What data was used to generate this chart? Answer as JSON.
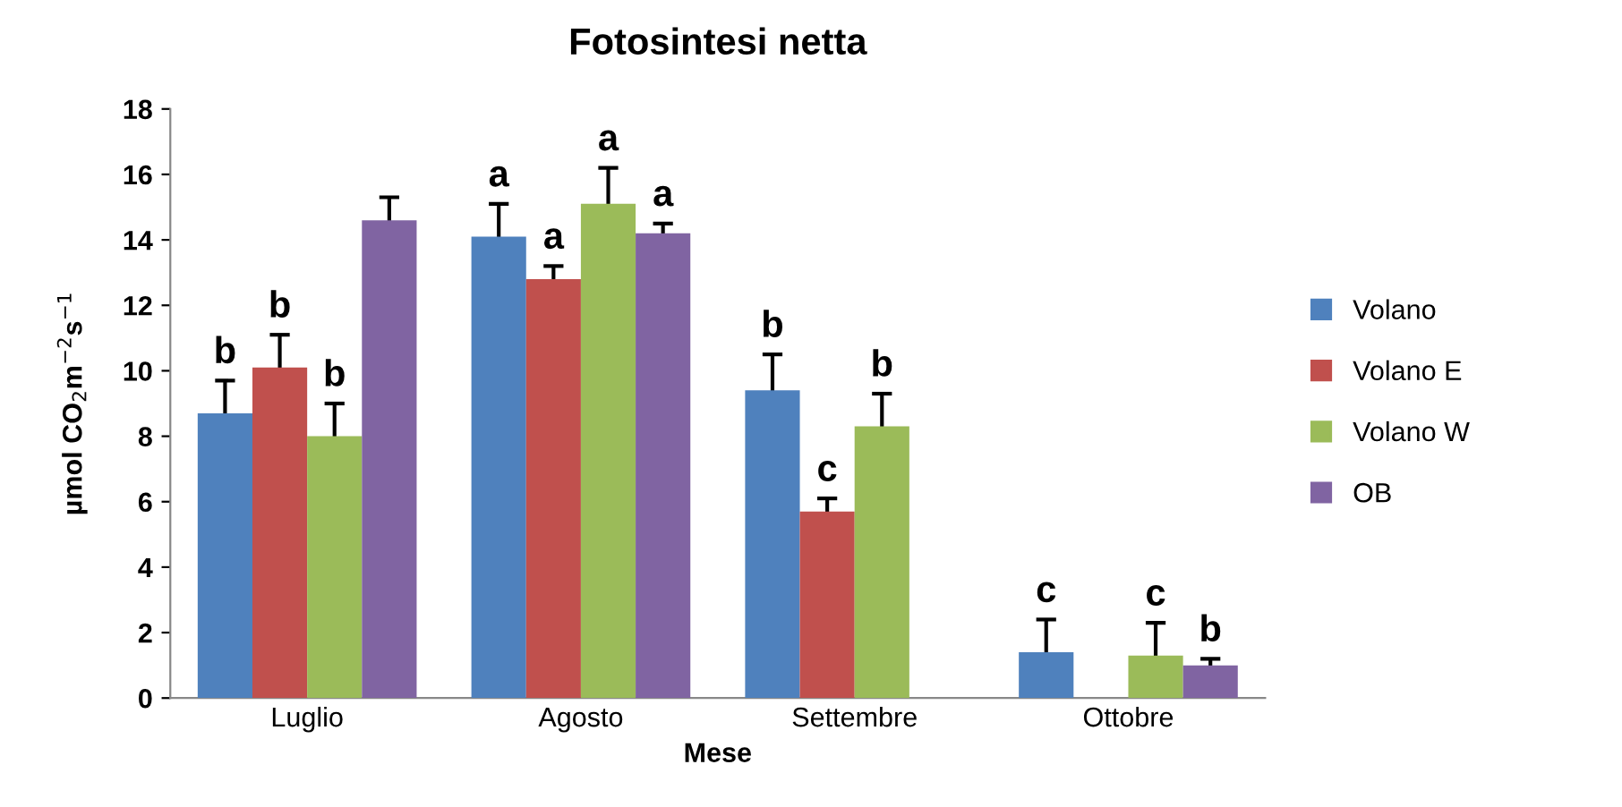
{
  "chart_data": {
    "type": "bar",
    "title": "Fotosintesi netta",
    "xlabel": "Mese",
    "ylabel": "µmol CO$_{2}$m$^{−2}$s$^{−1}$",
    "categories": [
      "Luglio",
      "Agosto",
      "Settembre",
      "Ottobre"
    ],
    "series": [
      {
        "name": "Volano",
        "color": "#4f81bd",
        "values": [
          8.7,
          14.1,
          9.4,
          1.4
        ],
        "errors": [
          1.0,
          1.0,
          1.1,
          1.0
        ],
        "value_labels": [
          "b",
          "a",
          "b",
          "c"
        ]
      },
      {
        "name": "Volano E",
        "color": "#c0504d",
        "values": [
          10.1,
          12.8,
          5.7,
          null
        ],
        "errors": [
          1.0,
          0.4,
          0.4,
          null
        ],
        "value_labels": [
          "b",
          "a",
          "c",
          null
        ]
      },
      {
        "name": "Volano W",
        "color": "#9bbb59",
        "values": [
          8.0,
          15.1,
          8.3,
          1.3
        ],
        "errors": [
          1.0,
          1.1,
          1.0,
          1.0
        ],
        "value_labels": [
          "b",
          "a",
          "b",
          "c"
        ]
      },
      {
        "name": "OB",
        "color": "#8064a2",
        "values": [
          14.6,
          14.2,
          null,
          1.0
        ],
        "errors": [
          0.7,
          0.3,
          null,
          0.2
        ],
        "value_labels": [
          null,
          "a",
          null,
          "b"
        ]
      }
    ],
    "ylim": [
      0,
      18
    ],
    "yticks": [
      0,
      2,
      4,
      6,
      8,
      10,
      12,
      14,
      16,
      18
    ],
    "grid": false,
    "legend": "right"
  }
}
